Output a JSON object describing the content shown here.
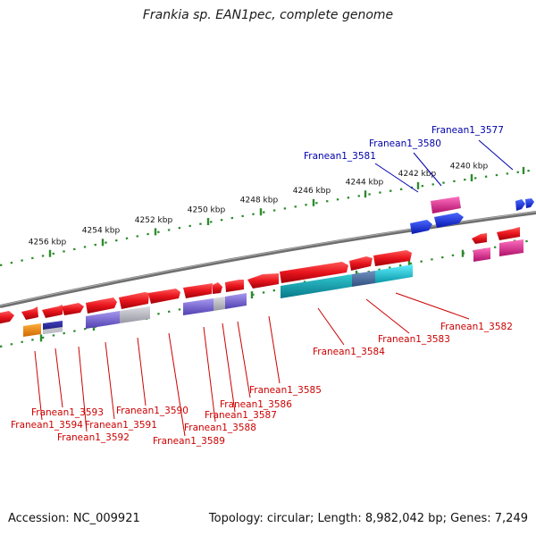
{
  "title": "Frankia sp. EAN1pec, complete genome",
  "footer": {
    "accession": "Accession: NC_009921",
    "summary": "Topology: circular; Length: 8,982,042 bp; Genes: 7,249"
  },
  "colors": {
    "backbone": "#7a7a7a",
    "tick_dots": "#2e8b2e",
    "label_red": "#cc0000",
    "label_blue": "#0000aa",
    "gene_red": "#e8141c",
    "gene_pink": "#e0208a",
    "gene_blue": "#1030e0",
    "gene_cyan": "#18c8d8",
    "gene_purple": "#7a6ad0",
    "gene_gray": "#b8b8c0",
    "gene_orange": "#f08a10",
    "gene_navy": "#202090"
  },
  "scale_ticks": [
    "4256 kbp",
    "4254 kbp",
    "4252 kbp",
    "4250 kbp",
    "4248 kbp",
    "4246 kbp",
    "4244 kbp",
    "4242 kbp",
    "4240 kbp"
  ],
  "gene_labels_blue": [
    "Franean1_3577",
    "Franean1_3580",
    "Franean1_3581"
  ],
  "gene_labels_red": [
    "Franean1_3582",
    "Franean1_3583",
    "Franean1_3584",
    "Franean1_3585",
    "Franean1_3586",
    "Franean1_3587",
    "Franean1_3588",
    "Franean1_3589",
    "Franean1_3590",
    "Franean1_3591",
    "Franean1_3592",
    "Franean1_3593",
    "Franean1_3594"
  ]
}
